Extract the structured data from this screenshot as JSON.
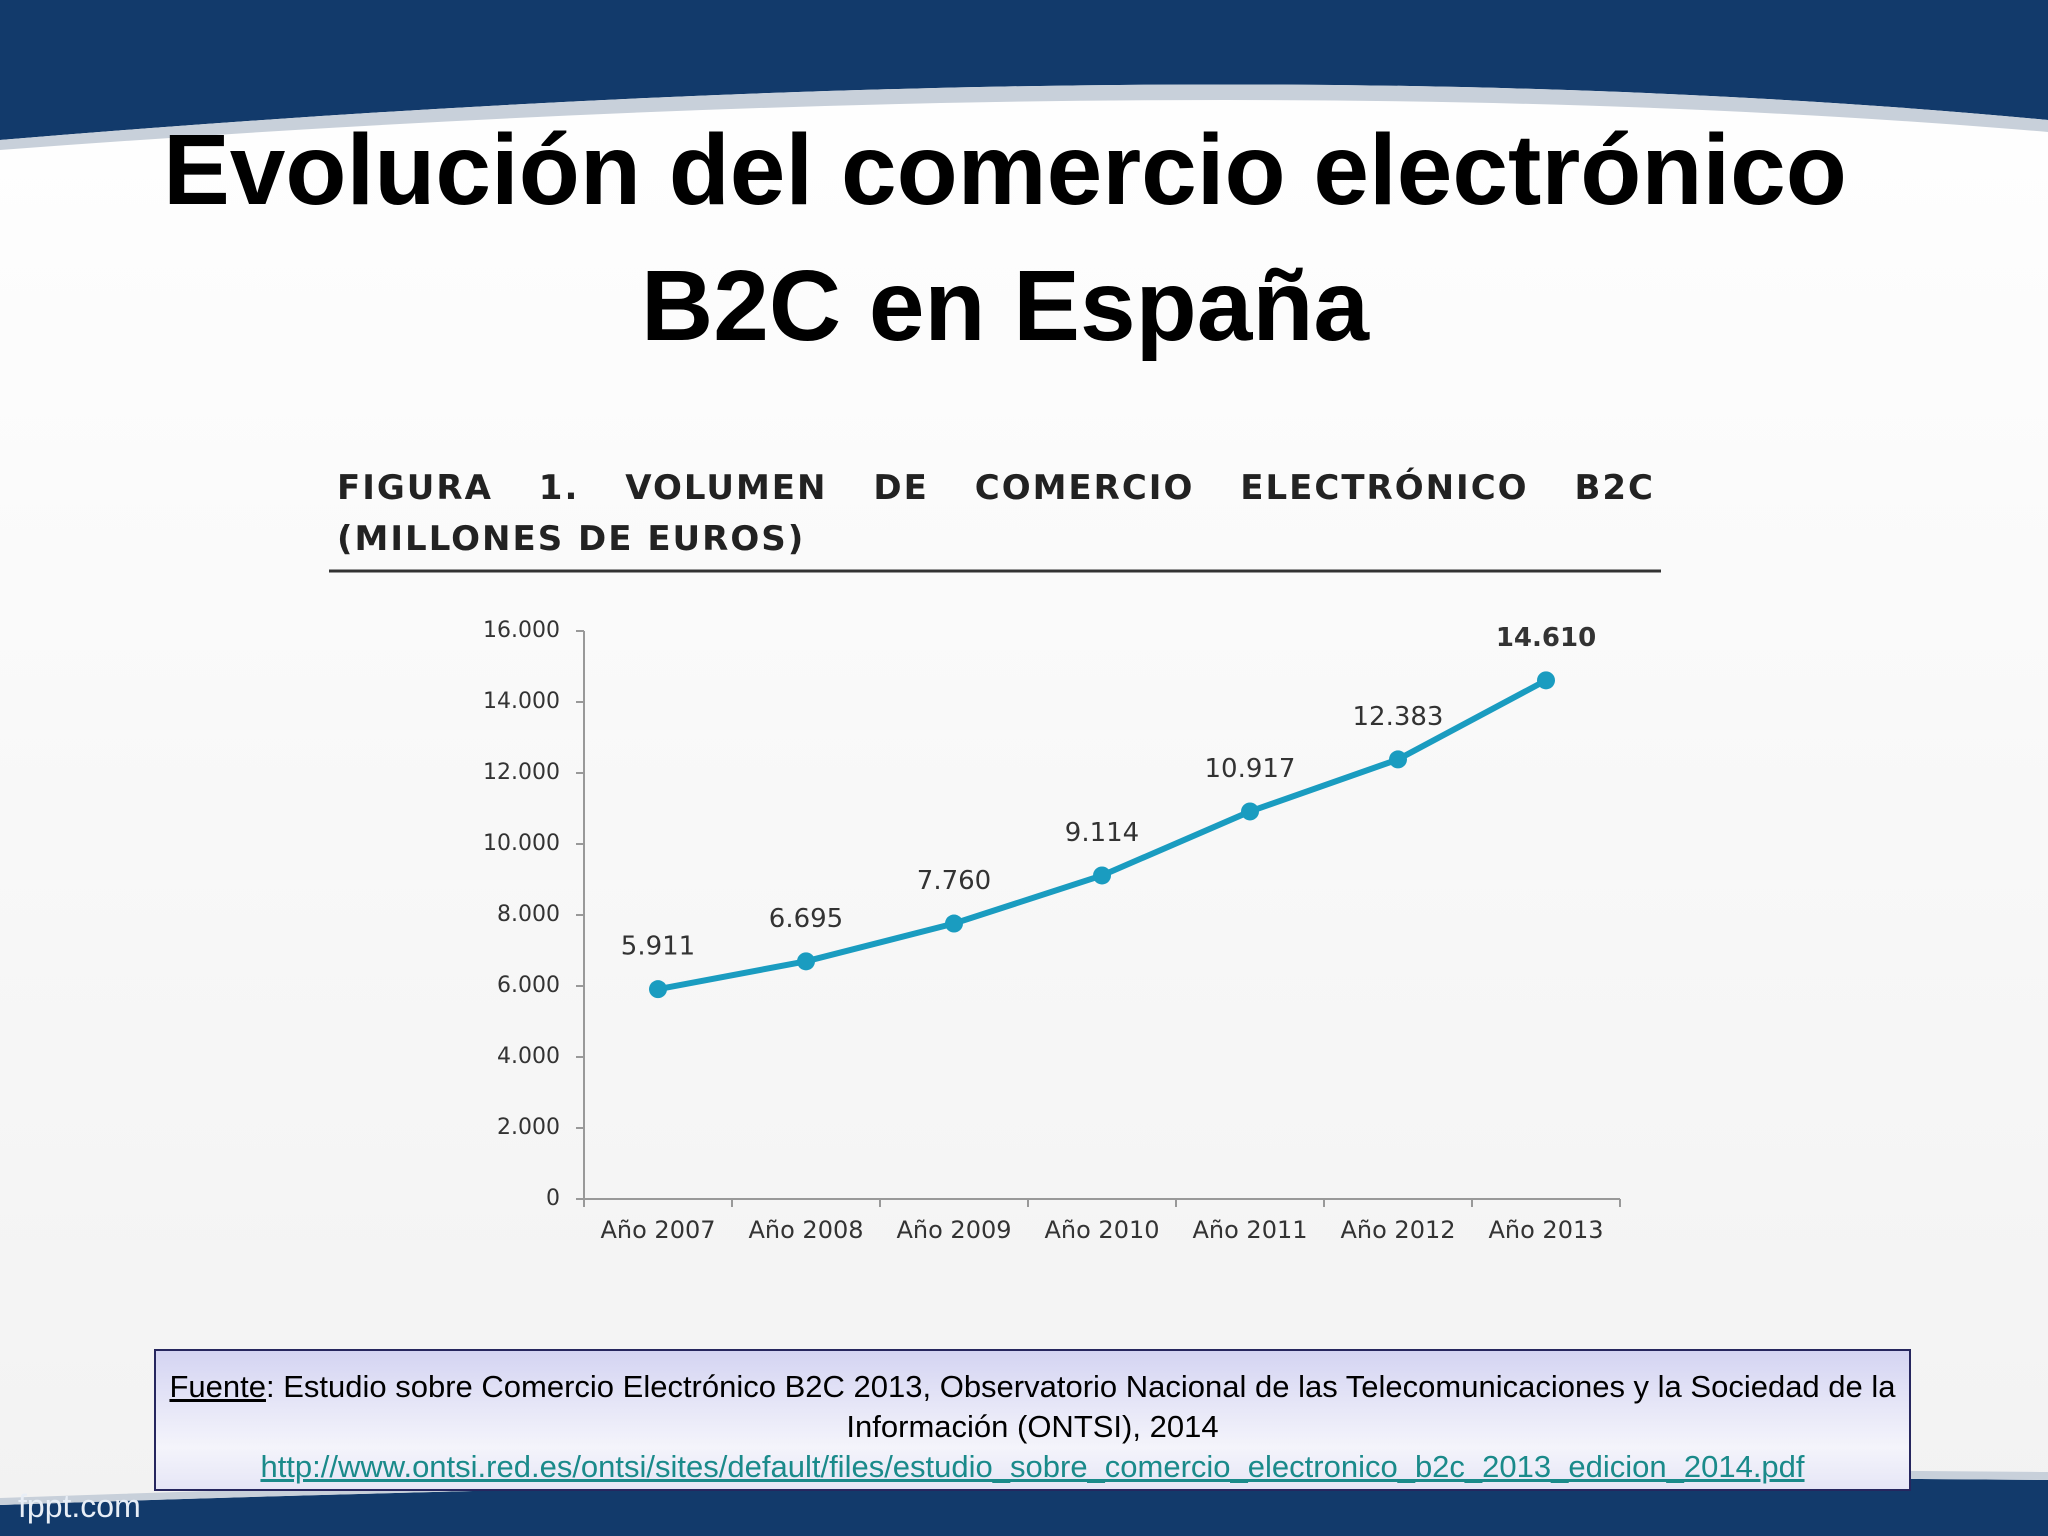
{
  "header": {
    "title_lines": [
      "Evolución del comercio electrónico",
      "B2C en España"
    ]
  },
  "chart_data": {
    "type": "line",
    "title": "FIGURA 1. VOLUMEN DE COMERCIO ELECTRÓNICO B2C (MILLONES DE EUROS)",
    "categories": [
      "Año 2007",
      "Año 2008",
      "Año 2009",
      "Año 2010",
      "Año 2011",
      "Año 2012",
      "Año 2013"
    ],
    "values": [
      5911,
      6695,
      7760,
      9114,
      10917,
      12383,
      14610
    ],
    "value_labels": [
      "5.911",
      "6.695",
      "7.760",
      "9.114",
      "10.917",
      "12.383",
      "14.610"
    ],
    "color": "#1a9cc0",
    "ylim": [
      0,
      16000
    ],
    "yticks": [
      0,
      {
        "value": 2000,
        "label": "2.000"
      },
      {
        "value": 4000,
        "label": "4.000"
      },
      {
        "value": 6000,
        "label": "6.000"
      },
      {
        "value": 8000,
        "label": "8.000"
      },
      {
        "value": 10000,
        "label": "10.000"
      },
      {
        "value": 12000,
        "label": "12.000"
      },
      {
        "value": 14000,
        "label": "14.000"
      },
      {
        "value": 16000,
        "label": "16.000"
      }
    ]
  },
  "source": {
    "label": "Fuente",
    "text": ": Estudio sobre Comercio Electrónico B2C 2013, Observatorio Nacional de las Telecomunicaciones y la Sociedad de la Información (ONTSI), 2014",
    "link": "http://www.ontsi.red.es/ontsi/sites/default/files/estudio_sobre_comercio_electronico_b2c_2013_edicion_2014.pdf"
  },
  "watermark": "fppt.com"
}
